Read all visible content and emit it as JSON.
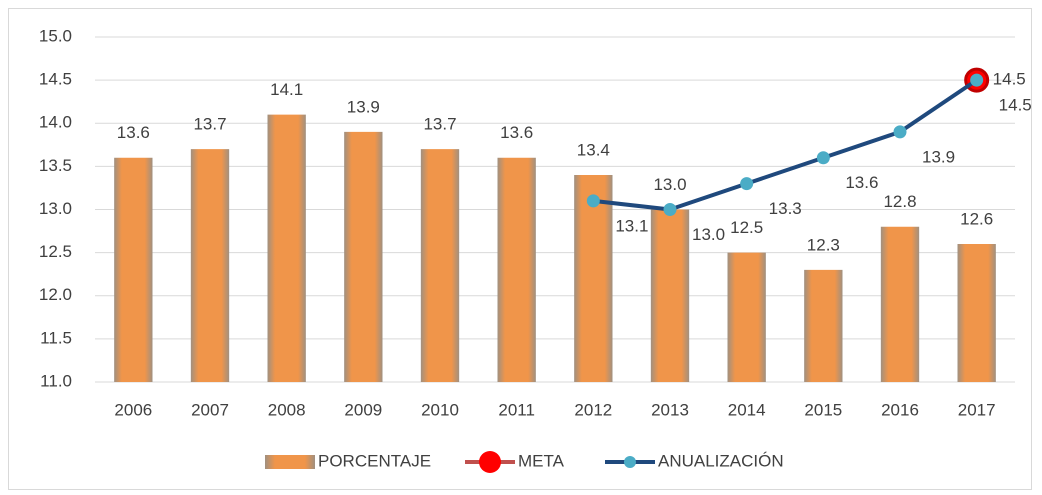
{
  "chart_data": {
    "type": "bar",
    "categories": [
      "2006",
      "2007",
      "2008",
      "2009",
      "2010",
      "2011",
      "2012",
      "2013",
      "2014",
      "2015",
      "2016",
      "2017"
    ],
    "series": [
      {
        "name": "PORCENTAJE",
        "type": "bar",
        "color": "#f0954a",
        "values": [
          13.6,
          13.7,
          14.1,
          13.9,
          13.7,
          13.6,
          13.4,
          13.0,
          12.5,
          12.3,
          12.8,
          12.6
        ],
        "value_labels": [
          "13.6",
          "13.7",
          "14.1",
          "13.9",
          "13.7",
          "13.6",
          "13.4",
          "13.0",
          "12.5",
          "12.3",
          "12.8",
          "12.6"
        ]
      },
      {
        "name": "META",
        "type": "line",
        "color": "#ff0000",
        "values": [
          null,
          null,
          null,
          null,
          null,
          null,
          null,
          null,
          null,
          null,
          null,
          14.5
        ],
        "value_labels": [
          null,
          null,
          null,
          null,
          null,
          null,
          null,
          null,
          null,
          null,
          null,
          "14.5"
        ]
      },
      {
        "name": "ANUALIZACIÓN",
        "type": "line",
        "color": "#1f497d",
        "marker_color": "#4bacc6",
        "values": [
          null,
          null,
          null,
          null,
          null,
          null,
          13.1,
          13.0,
          13.3,
          13.6,
          13.9,
          14.5
        ],
        "value_labels": [
          null,
          null,
          null,
          null,
          null,
          null,
          "13.1",
          "13.0",
          "13.3",
          "13.6",
          "13.9",
          "14.5"
        ]
      }
    ],
    "ylim": [
      11,
      15
    ],
    "yticks": [
      {
        "value": 11,
        "label": "11.0"
      },
      {
        "value": 11.5,
        "label": "11.5"
      },
      {
        "value": 12,
        "label": "12.0"
      },
      {
        "value": 12.5,
        "label": "12.5"
      },
      {
        "value": 13,
        "label": "13.0"
      },
      {
        "value": 13.5,
        "label": "13.5"
      },
      {
        "value": 14,
        "label": "14.0"
      },
      {
        "value": 14.5,
        "label": "14.5"
      },
      {
        "value": 15,
        "label": "15.0"
      }
    ],
    "grid": true,
    "legend": "bottom"
  }
}
